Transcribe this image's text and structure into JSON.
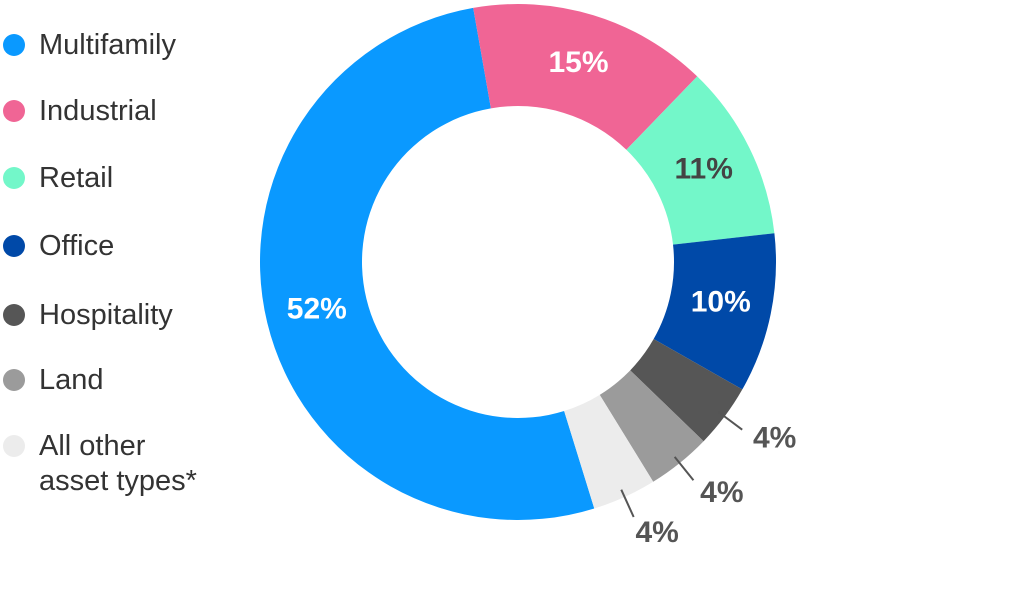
{
  "chart_data": {
    "type": "donut",
    "categories": [
      "Multifamily",
      "Industrial",
      "Retail",
      "Office",
      "Hospitality",
      "Land",
      "All other asset types*"
    ],
    "values": [
      52,
      15,
      11,
      10,
      4,
      4,
      4
    ],
    "value_labels": [
      "52%",
      "15%",
      "11%",
      "10%",
      "4%",
      "4%",
      "4%"
    ],
    "colors": [
      "#0a99ff",
      "#f06595",
      "#73f7c9",
      "#0049a8",
      "#565656",
      "#9b9b9b",
      "#ececec"
    ]
  }
}
